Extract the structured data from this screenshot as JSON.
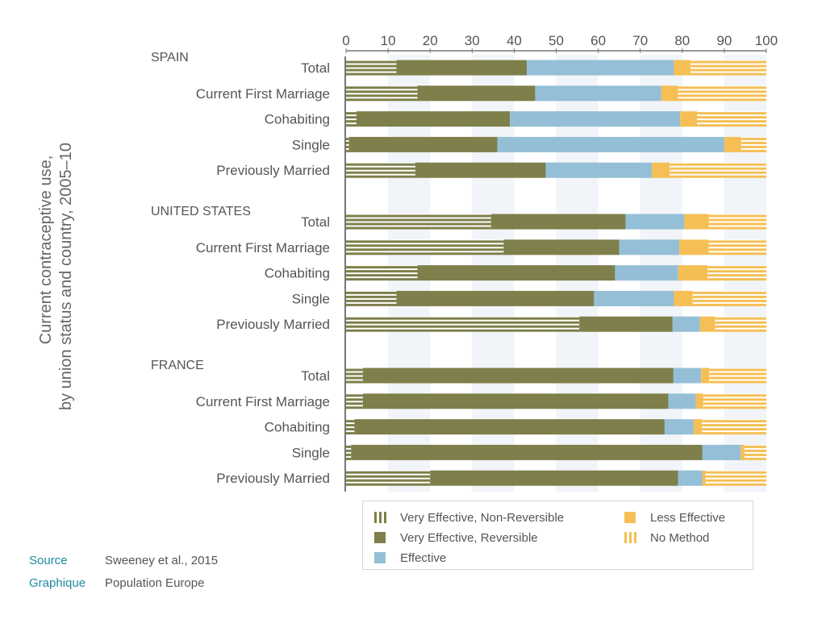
{
  "chart_data": {
    "type": "bar",
    "orientation": "horizontal",
    "stacked": true,
    "y_title_lines": [
      "Current contraceptive use,",
      "by union status and country, 2005–10"
    ],
    "xlim": [
      0,
      100
    ],
    "x_ticks": [
      "0",
      "10",
      "20",
      "30",
      "40",
      "50",
      "60",
      "70",
      "80",
      "90",
      "100"
    ],
    "x_axis_position": "top",
    "grid": "alternating vertical bands",
    "legend_position": "bottom",
    "series_order": [
      "non_reversible",
      "reversible",
      "effective",
      "less_effective",
      "no_method"
    ],
    "legend": [
      {
        "key": "non_reversible",
        "label": "Very Effective, Non-Reversible"
      },
      {
        "key": "reversible",
        "label": "Very Effective, Reversible"
      },
      {
        "key": "effective",
        "label": "Effective"
      },
      {
        "key": "less_effective",
        "label": "Less Effective"
      },
      {
        "key": "no_method",
        "label": "No Method"
      }
    ],
    "groups": [
      {
        "name": "SPAIN",
        "rows": [
          {
            "label": "Total",
            "values": [
              12,
              31,
              35,
              4,
              18
            ]
          },
          {
            "label": "Current First Marriage",
            "values": [
              17,
              28,
              30,
              4,
              21
            ]
          },
          {
            "label": "Cohabiting",
            "values": [
              2.5,
              36.5,
              40.5,
              4,
              16.5
            ]
          },
          {
            "label": "Single",
            "values": [
              0.7,
              35.3,
              54,
              4,
              6
            ]
          },
          {
            "label": "Previously Married",
            "values": [
              16.5,
              31,
              25.3,
              4.2,
              23
            ]
          }
        ]
      },
      {
        "name": "UNITED STATES",
        "rows": [
          {
            "label": "Total",
            "values": [
              34.5,
              32,
              14,
              5.8,
              13.7
            ]
          },
          {
            "label": "Current First Marriage",
            "values": [
              37.5,
              27.5,
              14.3,
              7,
              13.7
            ]
          },
          {
            "label": "Cohabiting",
            "values": [
              17,
              47,
              15,
              7,
              14
            ]
          },
          {
            "label": "Single",
            "values": [
              12,
              47,
              19,
              4.5,
              17.5
            ]
          },
          {
            "label": "Previously Married",
            "values": [
              55.5,
              22.2,
              6.5,
              3.6,
              12.2
            ]
          }
        ]
      },
      {
        "name": "FRANCE",
        "rows": [
          {
            "label": "Total",
            "values": [
              4,
              73.9,
              6.6,
              1.9,
              13.6
            ]
          },
          {
            "label": "Current First Marriage",
            "values": [
              4,
              72.7,
              6.5,
              1.8,
              15
            ]
          },
          {
            "label": "Cohabiting",
            "values": [
              2,
              73.8,
              6.9,
              2,
              15.3
            ]
          },
          {
            "label": "Single",
            "values": [
              1.2,
              83.6,
              9.1,
              0.9,
              5.2
            ]
          },
          {
            "label": "Previously Married",
            "values": [
              20,
              59,
              5.8,
              0.7,
              14.5
            ]
          }
        ]
      }
    ]
  },
  "colors": {
    "reversible": "#7e7f4a",
    "effective": "#94bfd6",
    "less_effective": "#f5bf55",
    "grid_band": "#f1f4f8",
    "axis": "#777777",
    "text": "#555555"
  },
  "source": {
    "rows": [
      {
        "label": "Source",
        "value": "Sweeney et al., 2015"
      },
      {
        "label": "Graphique",
        "value": "Population Europe"
      }
    ]
  }
}
